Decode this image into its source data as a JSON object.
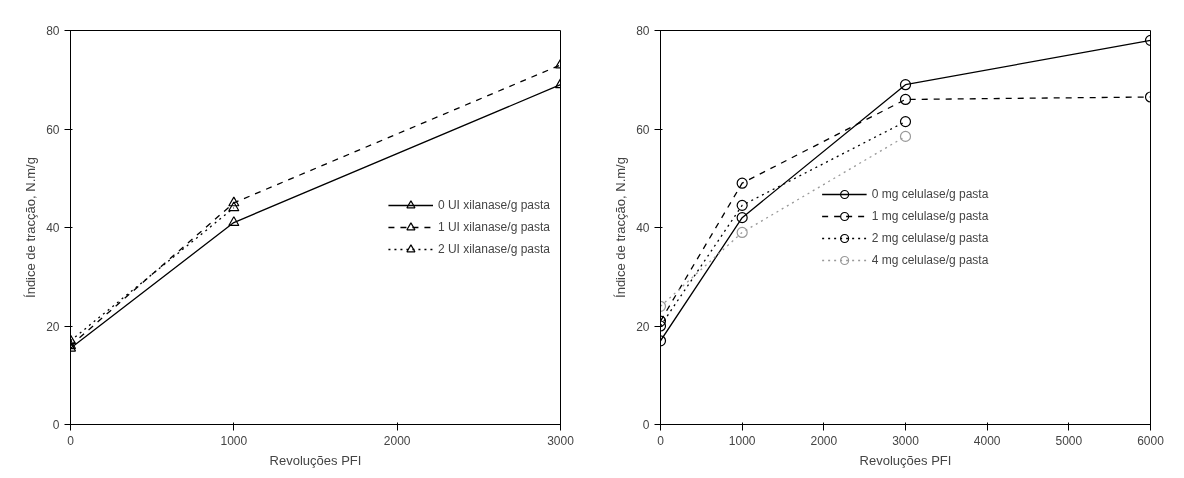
{
  "chart_data": [
    {
      "type": "line",
      "xlabel": "Revoluções PFI",
      "ylabel": "Índice de tracção, N.m/g",
      "x": [
        0,
        1000,
        3000
      ],
      "xlim": [
        0,
        3000
      ],
      "xticks": [
        0,
        1000,
        2000,
        3000
      ],
      "ylim": [
        0,
        80
      ],
      "yticks": [
        0,
        20,
        40,
        60,
        80
      ],
      "grid": false,
      "legend": "right",
      "marker": "triangle",
      "series": [
        {
          "name": "0 UI xilanase/g pasta",
          "color": "#000000",
          "line_style": "solid",
          "values": [
            15.5,
            41,
            69
          ]
        },
        {
          "name": "1 UI xilanase/g pasta",
          "color": "#000000",
          "line_style": "dashed",
          "values": [
            16,
            45,
            73
          ]
        },
        {
          "name": "2 UI xilanase/g pasta",
          "color": "#000000",
          "line_style": "dotted",
          "values": [
            17,
            44,
            null
          ]
        }
      ]
    },
    {
      "type": "line",
      "xlabel": "Revoluções PFI",
      "ylabel": "Índice de tracção, N.m/g",
      "x": [
        0,
        1000,
        3000,
        6000
      ],
      "xlim": [
        0,
        6000
      ],
      "xticks": [
        0,
        1000,
        2000,
        3000,
        4000,
        5000,
        6000
      ],
      "ylim": [
        0,
        80
      ],
      "yticks": [
        0,
        20,
        40,
        60,
        80
      ],
      "grid": false,
      "legend": "center",
      "marker": "circle",
      "series": [
        {
          "name": "0 mg celulase/g pasta",
          "color": "#000000",
          "line_style": "solid",
          "values": [
            17,
            42,
            69,
            78
          ]
        },
        {
          "name": "1 mg celulase/g pasta",
          "color": "#000000",
          "line_style": "dashed",
          "values": [
            21,
            49,
            66,
            66.5
          ]
        },
        {
          "name": "2 mg celulase/g pasta",
          "color": "#000000",
          "line_style": "dotted",
          "values": [
            20,
            44.5,
            61.5,
            null
          ]
        },
        {
          "name": "4 mg celulase/g pasta",
          "color": "#999999",
          "line_style": "dotted",
          "values": [
            24,
            39,
            58.5,
            null
          ]
        }
      ]
    }
  ]
}
